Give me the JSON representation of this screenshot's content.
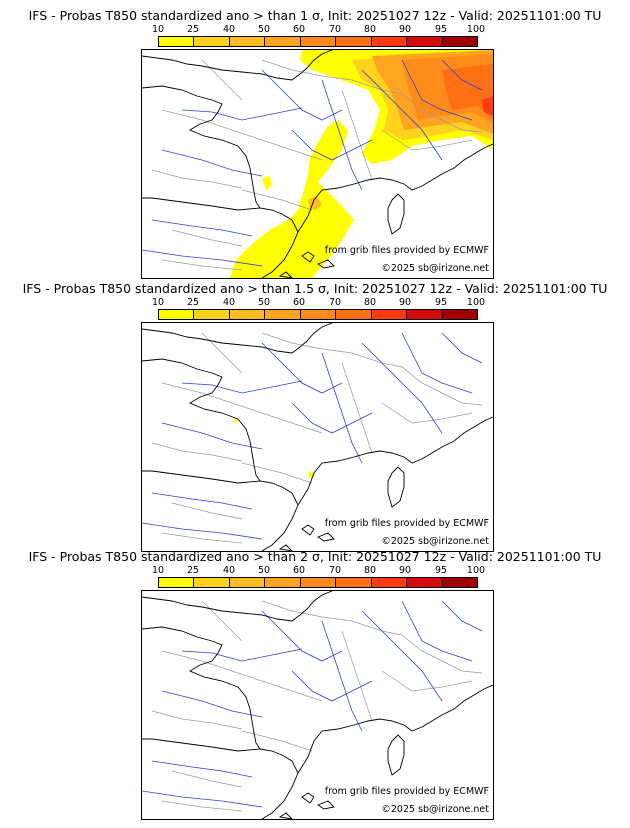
{
  "colorbar": {
    "ticks": [
      "10",
      "25",
      "40",
      "50",
      "60",
      "70",
      "80",
      "90",
      "95",
      "100"
    ],
    "colors": [
      "#ffff00",
      "#ffd21e",
      "#ffbb22",
      "#ffa420",
      "#ff8c1a",
      "#ff7015",
      "#ff3c0f",
      "#d20a0a",
      "#a00000",
      "#640000"
    ]
  },
  "panels": [
    {
      "title": "IFS - Probas T850  standardized ano > than 1 σ, Init: 20251027 12z - Valid: 20251101:00 TU",
      "credit_source": "from grib files provided by ECMWF",
      "credit_copyright": "©2025 sb@irizone.net",
      "shading": "heavy"
    },
    {
      "title": "IFS - Probas T850  standardized ano > than 1.5 σ, Init: 20251027 12z - Valid: 20251101:00 TU",
      "credit_source": "from grib files provided by ECMWF",
      "credit_copyright": "©2025 sb@irizone.net",
      "shading": "minimal"
    },
    {
      "title": "IFS - Probas T850  standardized ano > than 2 σ, Init: 20251027 12z - Valid: 20251101:00 TU",
      "credit_source": "from grib files provided by ECMWF",
      "credit_copyright": "©2025 sb@irizone.net",
      "shading": "none"
    }
  ]
}
